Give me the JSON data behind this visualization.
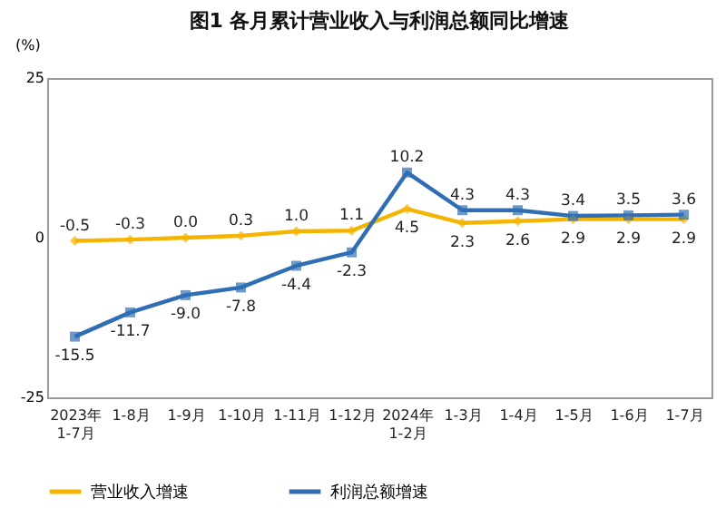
{
  "chart_data": {
    "type": "line",
    "title": "图1  各月累计营业收入与利润总额同比增速",
    "ylabel": "(%)",
    "categories": [
      "2023年\n1-7月",
      "1-8月",
      "1-9月",
      "1-10月",
      "1-11月",
      "1-12月",
      "2024年\n1-2月",
      "1-3月",
      "1-4月",
      "1-5月",
      "1-6月",
      "1-7月"
    ],
    "series": [
      {
        "name": "营业收入增速",
        "color": "#f5b400",
        "marker": "diamond",
        "values": [
          -0.5,
          -0.3,
          0.0,
          0.3,
          1.0,
          1.1,
          4.5,
          2.3,
          2.6,
          2.9,
          2.9,
          2.9
        ],
        "value_labels": [
          "-0.5",
          "-0.3",
          "0.0",
          "0.3",
          "1.0",
          "1.1",
          "4.5",
          "2.3",
          "2.6",
          "2.9",
          "2.9",
          "2.9"
        ]
      },
      {
        "name": "利润总额增速",
        "color": "#2f6db5",
        "marker": "square",
        "values": [
          -15.5,
          -11.7,
          -9.0,
          -7.8,
          -4.4,
          -2.3,
          10.2,
          4.3,
          4.3,
          3.4,
          3.5,
          3.6
        ],
        "value_labels": [
          "-15.5",
          "-11.7",
          "-9.0",
          "-7.8",
          "-4.4",
          "-2.3",
          "10.2",
          "4.3",
          "4.3",
          "3.4",
          "3.5",
          "3.6"
        ]
      }
    ],
    "ylim": [
      -25,
      25
    ],
    "yticks": [
      -25,
      0,
      25
    ],
    "legend": "bottom",
    "grid": false,
    "line_style": "solid"
  }
}
